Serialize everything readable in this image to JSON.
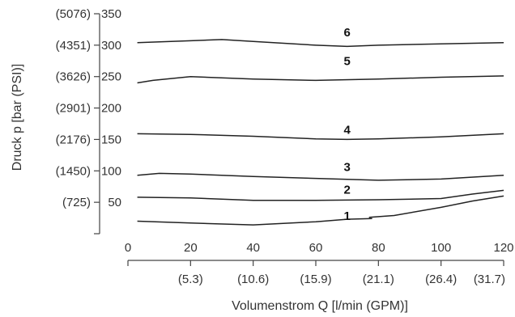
{
  "chart_data": {
    "type": "line",
    "xlabel": "Volumenstrom Q [l/min (GPM)]",
    "ylabel": "Druck p [bar (PSI)]",
    "xlim": [
      0,
      120
    ],
    "ylim": [
      0,
      350
    ],
    "x_ticks": [
      0,
      20,
      40,
      60,
      80,
      100,
      120
    ],
    "x_ticks_secondary": [
      {
        "value": 20,
        "label": "(5.3)"
      },
      {
        "value": 40,
        "label": "(10.6)"
      },
      {
        "value": 60,
        "label": "(15.9)"
      },
      {
        "value": 80,
        "label": "(21.1)"
      },
      {
        "value": 100,
        "label": "(26.4)"
      },
      {
        "value": 120,
        "label": "(31.7)"
      }
    ],
    "y_ticks": [
      50,
      100,
      150,
      200,
      250,
      300,
      350
    ],
    "y_ticks_secondary": [
      {
        "value": 50,
        "label": "(725)"
      },
      {
        "value": 100,
        "label": "(1450)"
      },
      {
        "value": 150,
        "label": "(2176)"
      },
      {
        "value": 200,
        "label": "(2901)"
      },
      {
        "value": 250,
        "label": "(3626)"
      },
      {
        "value": 300,
        "label": "(4351)"
      },
      {
        "value": 350,
        "label": "(5076)"
      }
    ],
    "grid": false,
    "curve_labels": [
      {
        "text": "1",
        "x": 70,
        "y": 22
      },
      {
        "text": "2",
        "x": 70,
        "y": 64
      },
      {
        "text": "3",
        "x": 70,
        "y": 100
      },
      {
        "text": "4",
        "x": 70,
        "y": 159
      },
      {
        "text": "5",
        "x": 70,
        "y": 268
      },
      {
        "text": "6",
        "x": 70,
        "y": 314
      }
    ],
    "series": [
      {
        "segments": [
          {
            "x": [
              3,
              20,
              40,
              60,
              70,
              78
            ],
            "y": [
              20,
              17,
              14,
              19,
              23,
              24
            ]
          },
          {
            "x": [
              77,
              85,
              100,
              110,
              120
            ],
            "y": [
              26,
              29,
              42,
              52,
              60
            ]
          }
        ]
      },
      {
        "segments": [
          {
            "x": [
              3,
              20,
              40,
              60,
              80,
              100,
              110,
              120
            ],
            "y": [
              58,
              57,
              53,
              53,
              54,
              56,
              63,
              69
            ]
          }
        ]
      },
      {
        "segments": [
          {
            "x": [
              3,
              10,
              20,
              40,
              60,
              80,
              100,
              120
            ],
            "y": [
              93,
              96,
              95,
              91,
              88,
              85,
              87,
              93
            ]
          }
        ]
      },
      {
        "segments": [
          {
            "x": [
              3,
              20,
              40,
              60,
              70,
              80,
              100,
              120
            ],
            "y": [
              159,
              158,
              155,
              151,
              150,
              151,
              154,
              159
            ]
          }
        ]
      },
      {
        "segments": [
          {
            "x": [
              3,
              8,
              20,
              40,
              60,
              80,
              100,
              120
            ],
            "y": [
              240,
              244,
              250,
              246,
              244,
              246,
              249,
              251
            ]
          }
        ]
      },
      {
        "segments": [
          {
            "x": [
              3,
              20,
              30,
              40,
              60,
              70,
              80,
              100,
              120
            ],
            "y": [
              304,
              307,
              309,
              306,
              300,
              298,
              300,
              302,
              304
            ]
          }
        ]
      }
    ]
  }
}
